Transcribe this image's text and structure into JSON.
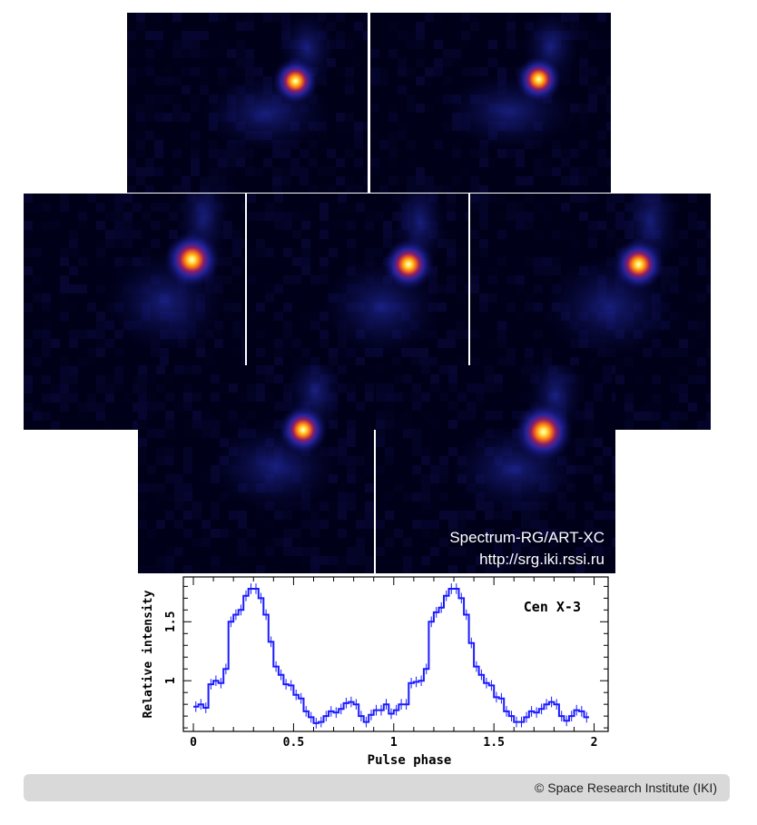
{
  "image_set": {
    "stamp_line1": "Spectrum-RG/ART-XC",
    "stamp_line2": "http://srg.iki.rssi.ru"
  },
  "footer": {
    "copyright": "© Space Research Institute (IKI)"
  },
  "colors": {
    "background_dark": "#000018",
    "line_blue": "#1a1aff",
    "source_core": "#fffde0",
    "footer_bg": "#d9d9d9"
  },
  "chart_data": {
    "type": "line",
    "style": "step-with-error-bars",
    "title": "Cen X-3",
    "xlabel": "Pulse phase",
    "ylabel": "Relative intensity",
    "xlim": [
      -0.05,
      2.07
    ],
    "ylim": [
      0.57,
      1.88
    ],
    "xticks": [
      0,
      0.5,
      1,
      1.5,
      2
    ],
    "xtick_labels": [
      "0",
      "0.5",
      "1",
      "1.5",
      "2"
    ],
    "yticks": [
      1,
      1.5
    ],
    "ytick_labels": [
      "1",
      "1.5"
    ],
    "grid": false,
    "bin_width": 0.025,
    "series": [
      {
        "x": [
          0.0125,
          0.0375,
          0.0625,
          0.0875,
          0.1125,
          0.1375,
          0.1625,
          0.1875,
          0.2125,
          0.2375,
          0.2625,
          0.2875,
          0.3125,
          0.3375,
          0.3625,
          0.3875,
          0.4125,
          0.4375,
          0.4625,
          0.4875,
          0.5125,
          0.5375,
          0.5625,
          0.5875,
          0.6125,
          0.6375,
          0.6625,
          0.6875,
          0.7125,
          0.7375,
          0.7625,
          0.7875,
          0.8125,
          0.8375,
          0.8625,
          0.8875,
          0.9125,
          0.9375,
          0.9625,
          0.9875,
          1.0125,
          1.0375,
          1.0625,
          1.0875,
          1.1125,
          1.1375,
          1.1625,
          1.1875,
          1.2125,
          1.2375,
          1.2625,
          1.2875,
          1.3125,
          1.3375,
          1.3625,
          1.3875,
          1.4125,
          1.4375,
          1.4625,
          1.4875,
          1.5125,
          1.5375,
          1.5625,
          1.5875,
          1.6125,
          1.6375,
          1.6625,
          1.6875,
          1.7125,
          1.7375,
          1.7625,
          1.7875,
          1.8125,
          1.8375,
          1.8625,
          1.8875,
          1.9125,
          1.9375,
          1.9625
        ],
        "values": [
          0.78,
          0.8,
          0.77,
          0.97,
          1.0,
          0.98,
          1.1,
          1.5,
          1.56,
          1.6,
          1.72,
          1.78,
          1.78,
          1.7,
          1.56,
          1.33,
          1.12,
          1.05,
          0.97,
          0.96,
          0.88,
          0.85,
          0.74,
          0.69,
          0.64,
          0.65,
          0.7,
          0.74,
          0.73,
          0.76,
          0.81,
          0.82,
          0.8,
          0.7,
          0.65,
          0.71,
          0.75,
          0.75,
          0.8,
          0.72,
          0.75,
          0.8,
          0.8,
          0.98,
          0.99,
          1.0,
          1.1,
          1.5,
          1.58,
          1.62,
          1.72,
          1.78,
          1.78,
          1.7,
          1.56,
          1.32,
          1.12,
          1.05,
          0.98,
          0.96,
          0.86,
          0.85,
          0.74,
          0.7,
          0.65,
          0.65,
          0.69,
          0.74,
          0.73,
          0.76,
          0.8,
          0.82,
          0.8,
          0.7,
          0.66,
          0.7,
          0.75,
          0.74,
          0.69
        ]
      }
    ]
  }
}
